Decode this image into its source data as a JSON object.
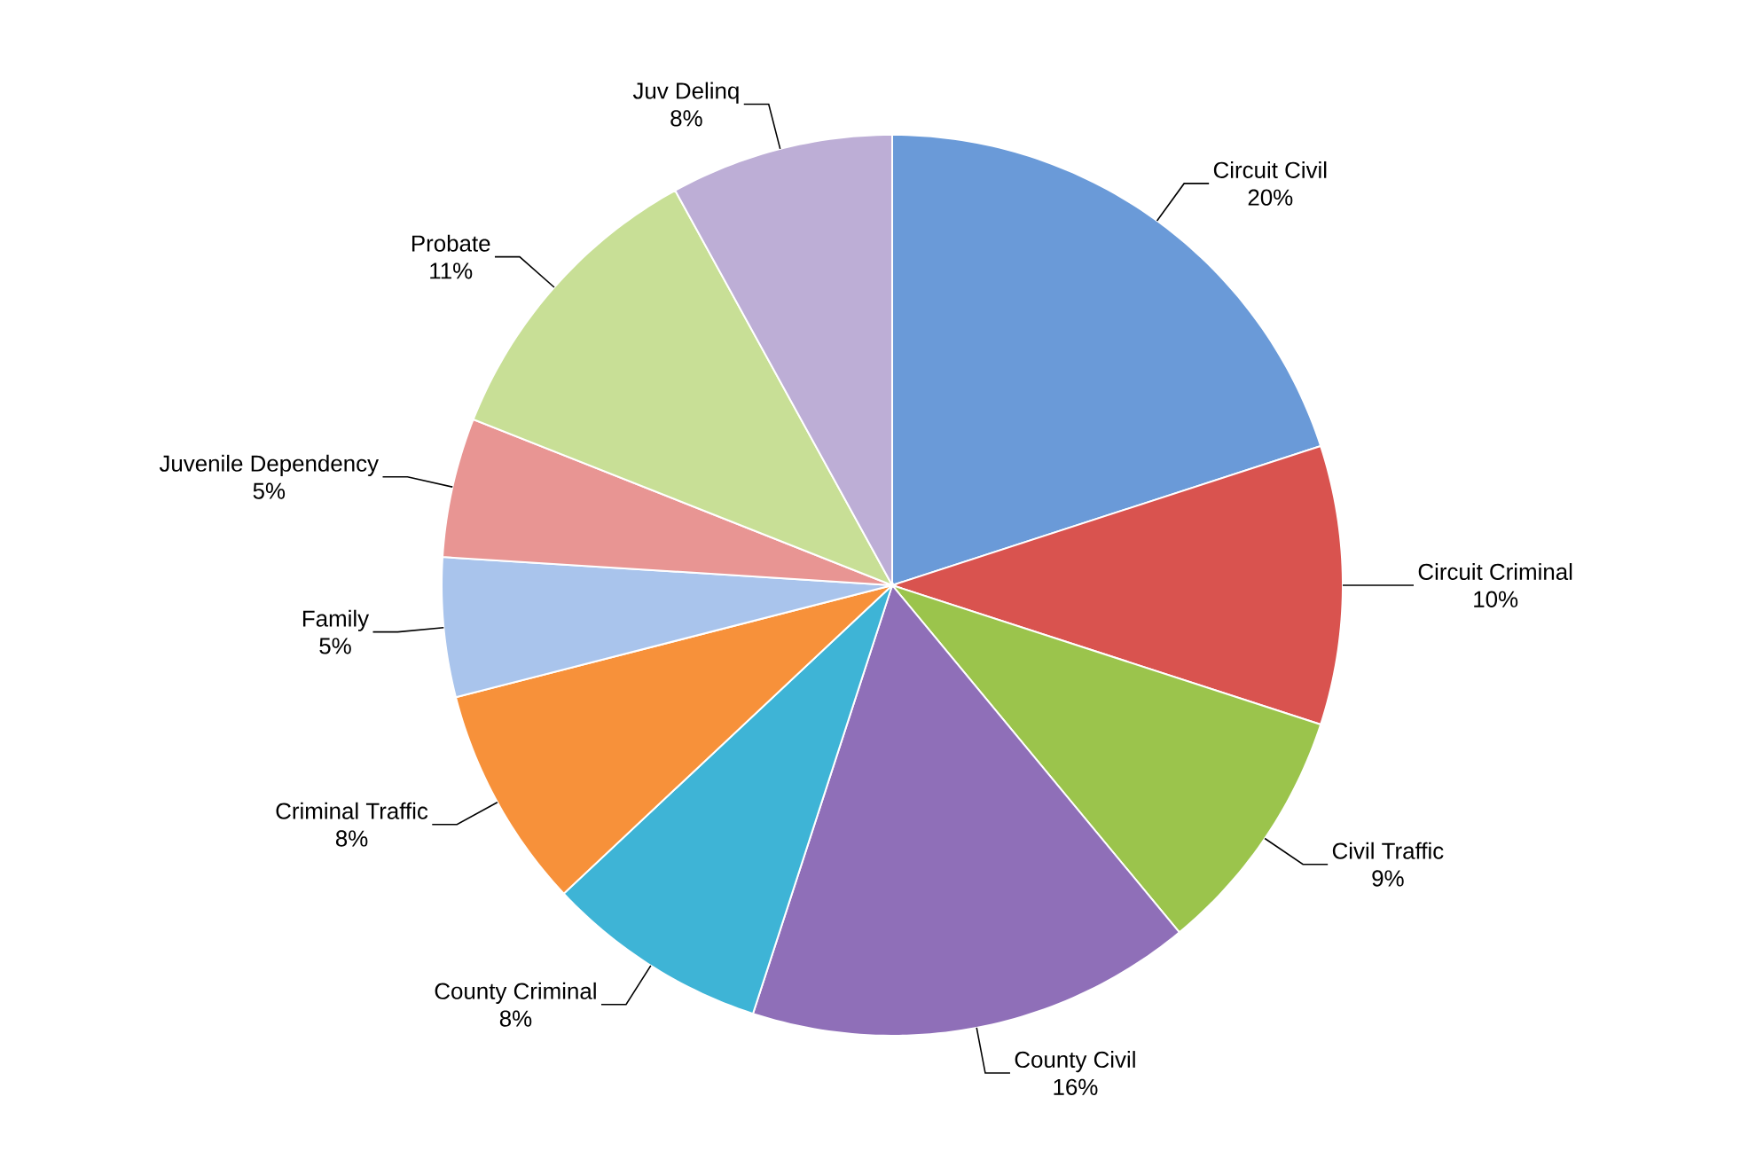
{
  "chart_data": {
    "type": "pie",
    "categories": [
      "Circuit Civil",
      "Circuit Criminal",
      "Civil Traffic",
      "County Civil",
      "County Criminal",
      "Criminal Traffic",
      "Family",
      "Juvenile Dependency",
      "Probate",
      "Juv Delinq"
    ],
    "values": [
      20,
      10,
      9,
      16,
      8,
      8,
      5,
      5,
      11,
      8
    ],
    "value_labels": [
      "20%",
      "10%",
      "9%",
      "16%",
      "8%",
      "8%",
      "5%",
      "5%",
      "11%",
      "8%"
    ],
    "colors": [
      "#6a9ad8",
      "#d9534f",
      "#9bc44c",
      "#8f6fb8",
      "#3eb4d6",
      "#f7913a",
      "#a9c4ec",
      "#e89593",
      "#c8df96",
      "#bdaed6"
    ]
  }
}
